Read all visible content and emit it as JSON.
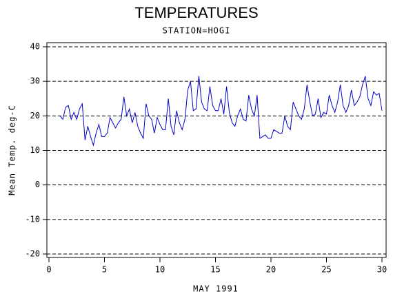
{
  "chart_data": {
    "type": "line",
    "title": "TEMPERATURES",
    "subtitle": "STATION=HOGI",
    "xlabel": "MAY 1991",
    "ylabel": "Mean Temp. deg-C",
    "x": [
      1,
      1.25,
      1.5,
      1.75,
      2,
      2.25,
      2.5,
      2.75,
      3,
      3.25,
      3.5,
      3.75,
      4,
      4.25,
      4.5,
      4.75,
      5,
      5.25,
      5.5,
      5.75,
      6,
      6.25,
      6.5,
      6.75,
      7,
      7.25,
      7.5,
      7.75,
      8,
      8.25,
      8.5,
      8.75,
      9,
      9.25,
      9.5,
      9.75,
      10,
      10.25,
      10.5,
      10.75,
      11,
      11.25,
      11.5,
      11.75,
      12,
      12.25,
      12.5,
      12.75,
      13,
      13.25,
      13.5,
      13.75,
      14,
      14.25,
      14.5,
      14.75,
      15,
      15.25,
      15.5,
      15.75,
      16,
      16.25,
      16.5,
      16.75,
      17,
      17.25,
      17.5,
      17.75,
      18,
      18.25,
      18.5,
      18.75,
      19,
      19.25,
      19.5,
      19.75,
      20,
      20.25,
      20.5,
      20.75,
      21,
      21.25,
      21.5,
      21.75,
      22,
      22.25,
      22.5,
      22.75,
      23,
      23.25,
      23.5,
      23.75,
      24,
      24.25,
      24.5,
      24.75,
      25,
      25.25,
      25.5,
      25.75,
      26,
      26.25,
      26.5,
      26.75,
      27,
      27.25,
      27.5,
      27.75,
      28,
      28.25,
      28.5,
      28.75,
      29,
      29.25,
      29.5,
      29.75,
      30
    ],
    "series": [
      {
        "name": "Mean Temp",
        "color": "#0000cc",
        "values": [
          20,
          19,
          22.5,
          23,
          19,
          21,
          19,
          22,
          23.5,
          13,
          17,
          14,
          11.5,
          15,
          17.5,
          14,
          14,
          15,
          19.5,
          18,
          16.5,
          18,
          19,
          25.5,
          20,
          22,
          18,
          21,
          17,
          15,
          13.5,
          23.5,
          20,
          19,
          15,
          19.5,
          17.5,
          16,
          16,
          25,
          17,
          14.5,
          21.5,
          18,
          16,
          19,
          27.5,
          30,
          21.5,
          22,
          31.5,
          24,
          22,
          21.5,
          28.5,
          23,
          21.5,
          21.5,
          25,
          20.5,
          28.5,
          21,
          18,
          17,
          20,
          22,
          19,
          18.5,
          26,
          22,
          20,
          26,
          13.5,
          14,
          14.5,
          13.5,
          13.5,
          16,
          15.5,
          15,
          15,
          20,
          17,
          16,
          24,
          22,
          20,
          19,
          22,
          29,
          24,
          20,
          20.5,
          25,
          19.5,
          21,
          20.5,
          26,
          23,
          21,
          24,
          29,
          23,
          21,
          23,
          27.5,
          23,
          24,
          25.5,
          29,
          31.5,
          25,
          23,
          27,
          26,
          26.5,
          21.5
        ]
      }
    ],
    "xlim": [
      0,
      30
    ],
    "xticks": [
      0,
      5,
      10,
      15,
      20,
      25,
      30
    ],
    "ylim": [
      -20,
      40
    ],
    "yticks": [
      -20,
      -10,
      0,
      10,
      20,
      30,
      40
    ],
    "grid": true
  }
}
